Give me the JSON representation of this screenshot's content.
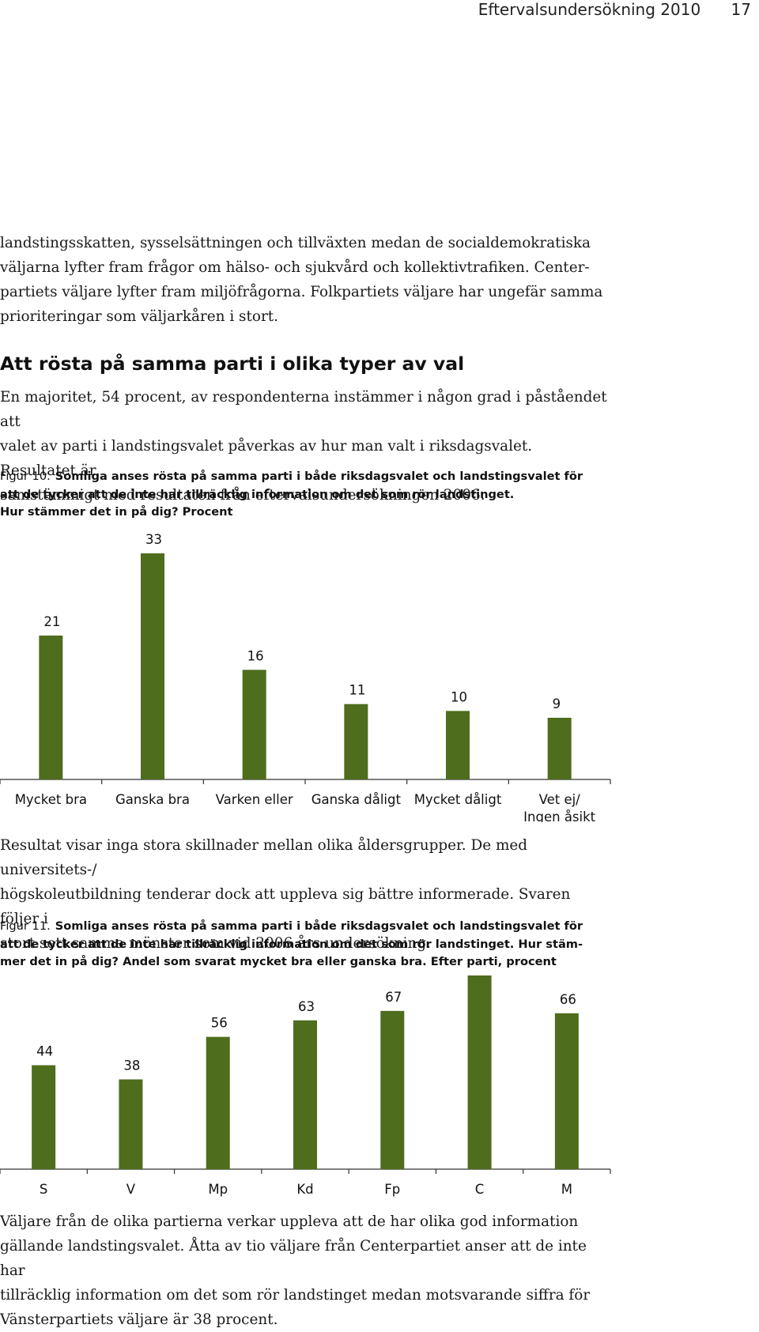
{
  "header": {
    "title": "Eftervalsundersökning 2010",
    "page": "17"
  },
  "para1": [
    "landstingsskatten, sysselsättningen och tillväxten medan de socialdemokratiska",
    "väljarna lyfter fram frågor om hälso- och sjukvård och kollektivtrafiken. Center-",
    "partiets väljare lyfter fram miljöfrågorna. Folkpartiets väljare har ungefär samma",
    "prioriteringar som väljarkåren i stort."
  ],
  "heading": "Att rösta på samma parti i olika typer av val",
  "para2": [
    "En majoritet, 54 procent, av respondenterna instämmer i någon grad i påståendet att",
    "valet av parti i landstingsvalet påverkas av hur man valt i riksdagsvalet. Resultatet är",
    "samstämmigt med resultaten från eftervalsundersökningen 2006."
  ],
  "fig10": {
    "label": "Figur 10.",
    "lines": [
      "Somliga anses rösta på samma parti i både riksdagsvalet och landstingsvalet för",
      "att de tycker att de inte har tillräcklig information om det som rör landstinget.",
      "Hur stämmer det in på dig? Procent"
    ]
  },
  "para3": [
    "Resultat visar inga stora skillnader mellan olika åldersgrupper. De med universitets-/",
    "högskoleutbildning tenderar dock att uppleva sig bättre informerade. Svaren följer i",
    "stort sett samma mönster som vid 2006 års undersökning."
  ],
  "fig11": {
    "label": "Figur 11.",
    "lines": [
      "Somliga anses rösta på samma parti i både riksdagsvalet och landstingsvalet för",
      "att de tycker att de inte har tillräcklig information om det som rör landstinget. Hur stäm-",
      "mer det in på dig? Andel som svarat mycket bra eller ganska bra. Efter parti, procent"
    ]
  },
  "para4": [
    "Väljare från de olika partierna verkar uppleva att de har olika god information",
    "gällande landstingsvalet. Åtta av tio väljare från Centerpartiet anser att de inte har",
    "tillräcklig information om det som rör landstinget medan motsvarande siffra för",
    "Vänsterpartiets väljare är 38 procent."
  ],
  "chart_data": [
    {
      "type": "bar",
      "categories": [
        "Mycket bra",
        "Ganska bra",
        "Varken eller",
        "Ganska dåligt",
        "Mycket dåligt",
        "Vet ej/ Ingen åsikt"
      ],
      "category_lines": [
        [
          "Mycket bra"
        ],
        [
          "Ganska bra"
        ],
        [
          "Varken eller"
        ],
        [
          "Ganska dåligt"
        ],
        [
          "Mycket dåligt"
        ],
        [
          "Vet ej/",
          "Ingen åsikt"
        ]
      ],
      "values": [
        21,
        33,
        16,
        11,
        10,
        9
      ],
      "data_labels": true,
      "grid": false,
      "color": "#4e6d1d"
    },
    {
      "type": "bar",
      "categories": [
        "S",
        "V",
        "Mp",
        "Kd",
        "Fp",
        "C",
        "M"
      ],
      "category_lines": [
        [
          "S"
        ],
        [
          "V"
        ],
        [
          "Mp"
        ],
        [
          "Kd"
        ],
        [
          "Fp"
        ],
        [
          "C"
        ],
        [
          "M"
        ]
      ],
      "values": [
        44,
        38,
        56,
        63,
        67,
        82,
        66
      ],
      "data_labels": true,
      "grid": false,
      "color": "#4e6d1d"
    }
  ]
}
